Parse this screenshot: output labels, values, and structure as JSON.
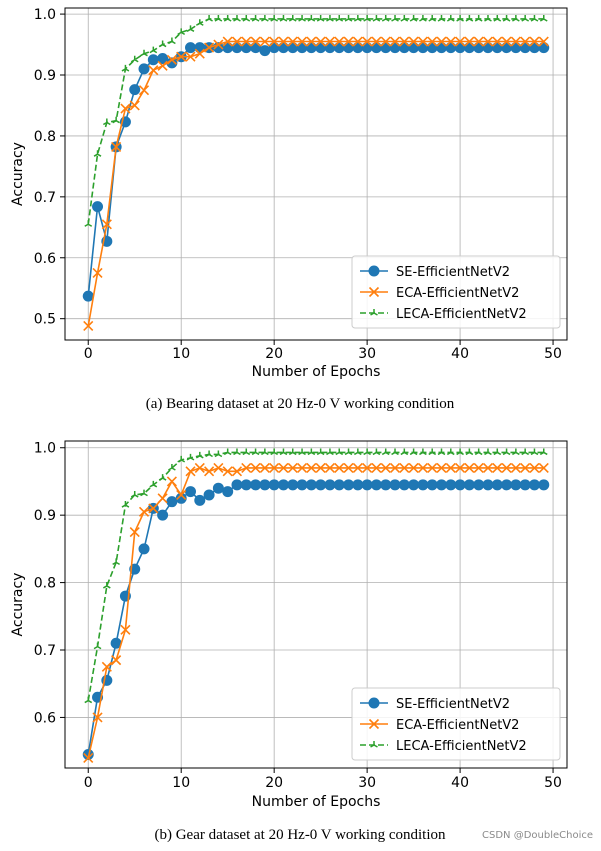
{
  "watermark": "CSDN @DoubleChoice",
  "chart_data": [
    {
      "type": "line",
      "caption": "(a) Bearing dataset at 20 Hz-0 V working condition",
      "xlabel": "Number of Epochs",
      "ylabel": "Accuracy",
      "xlim": [
        -2.5,
        51.5
      ],
      "ylim": [
        0.465,
        1.01
      ],
      "xticks": [
        0,
        10,
        20,
        30,
        40,
        50
      ],
      "yticks": [
        0.5,
        0.6,
        0.7,
        0.8,
        0.9,
        1.0
      ],
      "grid": true,
      "legend_position": "lower-right",
      "series": [
        {
          "name": "SE-EfficientNetV2",
          "color": "#1f77b4",
          "marker": "circle",
          "linestyle": "solid",
          "values": [
            0.537,
            0.684,
            0.627,
            0.782,
            0.823,
            0.876,
            0.91,
            0.925,
            0.927,
            0.92,
            0.93,
            0.945,
            0.945,
            0.945,
            0.945,
            0.945,
            0.945,
            0.945,
            0.945,
            0.94,
            0.945,
            0.945,
            0.945,
            0.945,
            0.945,
            0.945,
            0.945,
            0.945,
            0.945,
            0.945,
            0.945,
            0.945,
            0.945,
            0.945,
            0.945,
            0.945,
            0.945,
            0.945,
            0.945,
            0.945,
            0.945,
            0.945,
            0.945,
            0.945,
            0.945,
            0.945,
            0.945,
            0.945,
            0.945,
            0.945
          ]
        },
        {
          "name": "ECA-EfficientNetV2",
          "color": "#ff7f0e",
          "marker": "x",
          "linestyle": "solid",
          "values": [
            0.488,
            0.575,
            0.655,
            0.782,
            0.845,
            0.85,
            0.875,
            0.908,
            0.915,
            0.925,
            0.93,
            0.93,
            0.935,
            0.945,
            0.95,
            0.955,
            0.955,
            0.955,
            0.955,
            0.955,
            0.955,
            0.955,
            0.955,
            0.955,
            0.955,
            0.955,
            0.955,
            0.955,
            0.955,
            0.955,
            0.955,
            0.955,
            0.955,
            0.955,
            0.955,
            0.955,
            0.955,
            0.955,
            0.955,
            0.955,
            0.955,
            0.955,
            0.955,
            0.955,
            0.955,
            0.955,
            0.955,
            0.955,
            0.955,
            0.955
          ]
        },
        {
          "name": "LECA-EfficientNetV2",
          "color": "#2ca02c",
          "marker": "tri",
          "linestyle": "dashed",
          "values": [
            0.655,
            0.77,
            0.822,
            0.825,
            0.91,
            0.925,
            0.935,
            0.94,
            0.95,
            0.955,
            0.97,
            0.975,
            0.985,
            0.992,
            0.992,
            0.992,
            0.992,
            0.992,
            0.992,
            0.992,
            0.992,
            0.992,
            0.992,
            0.992,
            0.992,
            0.992,
            0.992,
            0.992,
            0.992,
            0.992,
            0.992,
            0.992,
            0.992,
            0.992,
            0.992,
            0.992,
            0.992,
            0.992,
            0.992,
            0.992,
            0.992,
            0.992,
            0.992,
            0.992,
            0.992,
            0.992,
            0.992,
            0.992,
            0.992,
            0.992
          ]
        }
      ]
    },
    {
      "type": "line",
      "caption": "(b) Gear dataset at 20 Hz-0 V working condition",
      "xlabel": "Number of Epochs",
      "ylabel": "Accuracy",
      "xlim": [
        -2.5,
        51.5
      ],
      "ylim": [
        0.525,
        1.01
      ],
      "xticks": [
        0,
        10,
        20,
        30,
        40,
        50
      ],
      "yticks": [
        0.6,
        0.7,
        0.8,
        0.9,
        1.0
      ],
      "grid": true,
      "legend_position": "lower-right",
      "series": [
        {
          "name": "SE-EfficientNetV2",
          "color": "#1f77b4",
          "marker": "circle",
          "linestyle": "solid",
          "values": [
            0.545,
            0.63,
            0.655,
            0.71,
            0.78,
            0.82,
            0.85,
            0.91,
            0.9,
            0.92,
            0.925,
            0.935,
            0.922,
            0.93,
            0.94,
            0.935,
            0.945,
            0.945,
            0.945,
            0.945,
            0.945,
            0.945,
            0.945,
            0.945,
            0.945,
            0.945,
            0.945,
            0.945,
            0.945,
            0.945,
            0.945,
            0.945,
            0.945,
            0.945,
            0.945,
            0.945,
            0.945,
            0.945,
            0.945,
            0.945,
            0.945,
            0.945,
            0.945,
            0.945,
            0.945,
            0.945,
            0.945,
            0.945,
            0.945,
            0.945
          ]
        },
        {
          "name": "ECA-EfficientNetV2",
          "color": "#ff7f0e",
          "marker": "x",
          "linestyle": "solid",
          "values": [
            0.54,
            0.6,
            0.675,
            0.685,
            0.73,
            0.875,
            0.905,
            0.91,
            0.925,
            0.95,
            0.93,
            0.965,
            0.97,
            0.965,
            0.97,
            0.965,
            0.965,
            0.97,
            0.97,
            0.97,
            0.97,
            0.97,
            0.97,
            0.97,
            0.97,
            0.97,
            0.97,
            0.97,
            0.97,
            0.97,
            0.97,
            0.97,
            0.97,
            0.97,
            0.97,
            0.97,
            0.97,
            0.97,
            0.97,
            0.97,
            0.97,
            0.97,
            0.97,
            0.97,
            0.97,
            0.97,
            0.97,
            0.97,
            0.97,
            0.97
          ]
        },
        {
          "name": "LECA-EfficientNetV2",
          "color": "#2ca02c",
          "marker": "tri",
          "linestyle": "dashed",
          "values": [
            0.625,
            0.705,
            0.795,
            0.83,
            0.915,
            0.93,
            0.932,
            0.945,
            0.955,
            0.97,
            0.982,
            0.985,
            0.988,
            0.99,
            0.99,
            0.993,
            0.993,
            0.993,
            0.993,
            0.993,
            0.993,
            0.993,
            0.993,
            0.993,
            0.993,
            0.993,
            0.993,
            0.993,
            0.993,
            0.993,
            0.993,
            0.993,
            0.993,
            0.993,
            0.993,
            0.993,
            0.993,
            0.993,
            0.993,
            0.993,
            0.993,
            0.993,
            0.993,
            0.993,
            0.993,
            0.993,
            0.993,
            0.993,
            0.993,
            0.993
          ]
        }
      ]
    }
  ]
}
